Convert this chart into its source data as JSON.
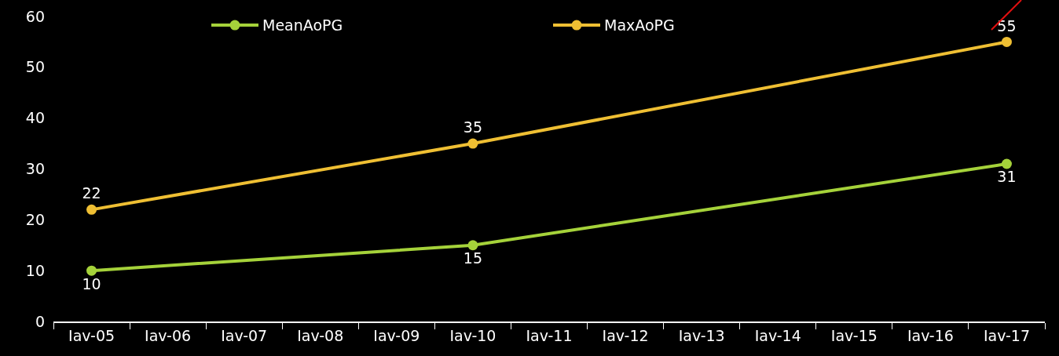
{
  "chart_data": {
    "type": "line",
    "categories": [
      "Iav-05",
      "Iav-06",
      "Iav-07",
      "Iav-08",
      "Iav-09",
      "Iav-10",
      "Iav-11",
      "Iav-12",
      "Iav-13",
      "Iav-14",
      "Iav-15",
      "Iav-16",
      "Iav-17"
    ],
    "series": [
      {
        "name": "MeanAoPG",
        "color": "#a5d23a",
        "values": [
          10,
          null,
          null,
          null,
          null,
          15,
          null,
          null,
          null,
          null,
          null,
          null,
          31
        ]
      },
      {
        "name": "MaxAoPG",
        "color": "#efbf33",
        "values": [
          22,
          null,
          null,
          null,
          null,
          35,
          null,
          null,
          null,
          null,
          null,
          null,
          55
        ]
      }
    ],
    "ylim": [
      0,
      60
    ],
    "yticks": [
      0,
      10,
      20,
      30,
      40,
      50,
      60
    ],
    "grid": false,
    "legend": "top",
    "marker": "circle",
    "line_style": "solid",
    "data_labels": true
  }
}
